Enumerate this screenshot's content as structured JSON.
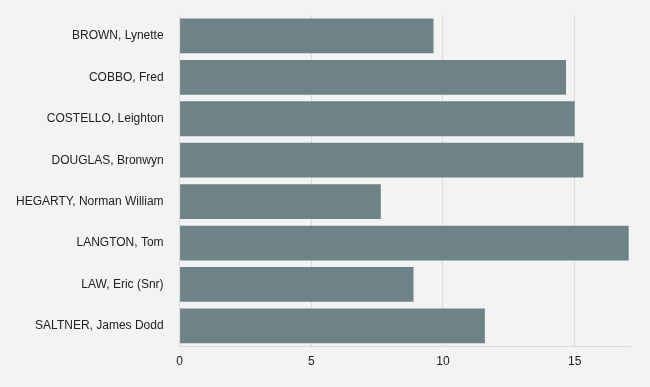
{
  "chart_data": {
    "type": "bar",
    "orientation": "horizontal",
    "categories": [
      "BROWN, Lynette",
      "COBBO, Fred",
      "COSTELLO, Leighton",
      "DOUGLAS, Bronwyn",
      "HEGARTY, Norman William",
      "LANGTON, Tom",
      "LAW, Eric (Snr)",
      "SALTNER, James Dodd"
    ],
    "values": [
      9.64,
      14.67,
      15.0,
      15.33,
      7.64,
      17.05,
      8.88,
      11.59
    ],
    "color": "#6e8387",
    "xlim": [
      0,
      17.1
    ],
    "xticks": [
      0,
      5,
      10,
      15
    ],
    "grid": true
  }
}
